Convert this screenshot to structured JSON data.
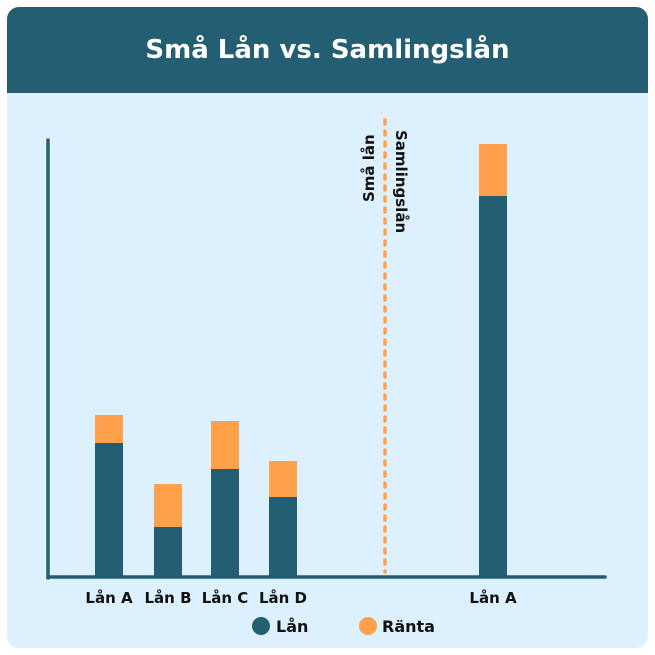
{
  "title": "Små Lån vs. Samlingslån",
  "colors": {
    "header": "#245e73",
    "background": "#dcf1fd",
    "lan": "#245e73",
    "ranta": "#ffa04a",
    "axis": "#245e73"
  },
  "chart_data": {
    "type": "bar",
    "stacked": true,
    "title": "Små Lån vs. Samlingslån",
    "categories": [
      "Lån A",
      "Lån B",
      "Lån C",
      "Lån D",
      "Lån A"
    ],
    "groups": [
      {
        "label": "Små lån",
        "categories": [
          "Lån A",
          "Lån B",
          "Lån C",
          "Lån D"
        ]
      },
      {
        "label": "Samlingslån",
        "categories": [
          "Lån A"
        ]
      }
    ],
    "series": [
      {
        "name": "Lån",
        "color": "#245e73",
        "values": [
          134,
          50,
          108,
          80,
          381
        ]
      },
      {
        "name": "Ränta",
        "color": "#ffa04a",
        "values": [
          28,
          43,
          48,
          36,
          52
        ]
      }
    ],
    "ylim": [
      0,
      437
    ],
    "y_ticks": false,
    "grid": false,
    "legend": "bottom",
    "divider": {
      "style": "dotted",
      "color": "#ffa04a",
      "left_label": "Små lån",
      "right_label": "Samlingslån"
    }
  }
}
